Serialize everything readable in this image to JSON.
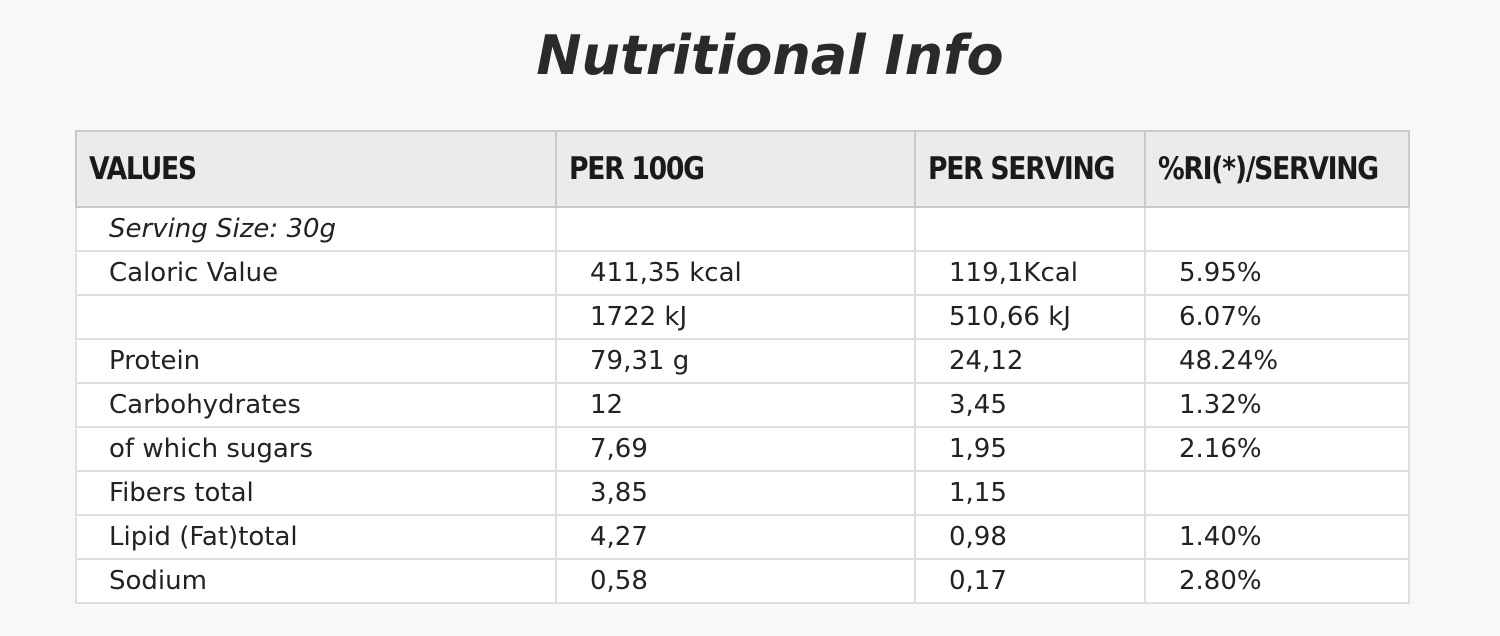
{
  "title": "Nutritional Info",
  "table": {
    "headers": [
      "VALUES",
      "PER 100G",
      "PER SERVING",
      "%RI(*)/SERVING"
    ],
    "rows": [
      [
        "Serving Size: 30g",
        "",
        "",
        ""
      ],
      [
        "Caloric Value",
        "411,35 kcal",
        "119,1Kcal",
        "5.95%"
      ],
      [
        "",
        "1722 kJ",
        "510,66 kJ",
        "6.07%"
      ],
      [
        "Protein",
        "79,31 g",
        "24,12",
        "48.24%"
      ],
      [
        "Carbohydrates",
        "12",
        "3,45",
        "1.32%"
      ],
      [
        "of which sugars",
        "7,69",
        "1,95",
        "2.16%"
      ],
      [
        "Fibers total",
        "3,85",
        "1,15",
        ""
      ],
      [
        "Lipid (Fat)total",
        "4,27",
        "0,98",
        "1.40%"
      ],
      [
        "Sodium",
        "0,58",
        "0,17",
        "2.80%"
      ]
    ]
  }
}
